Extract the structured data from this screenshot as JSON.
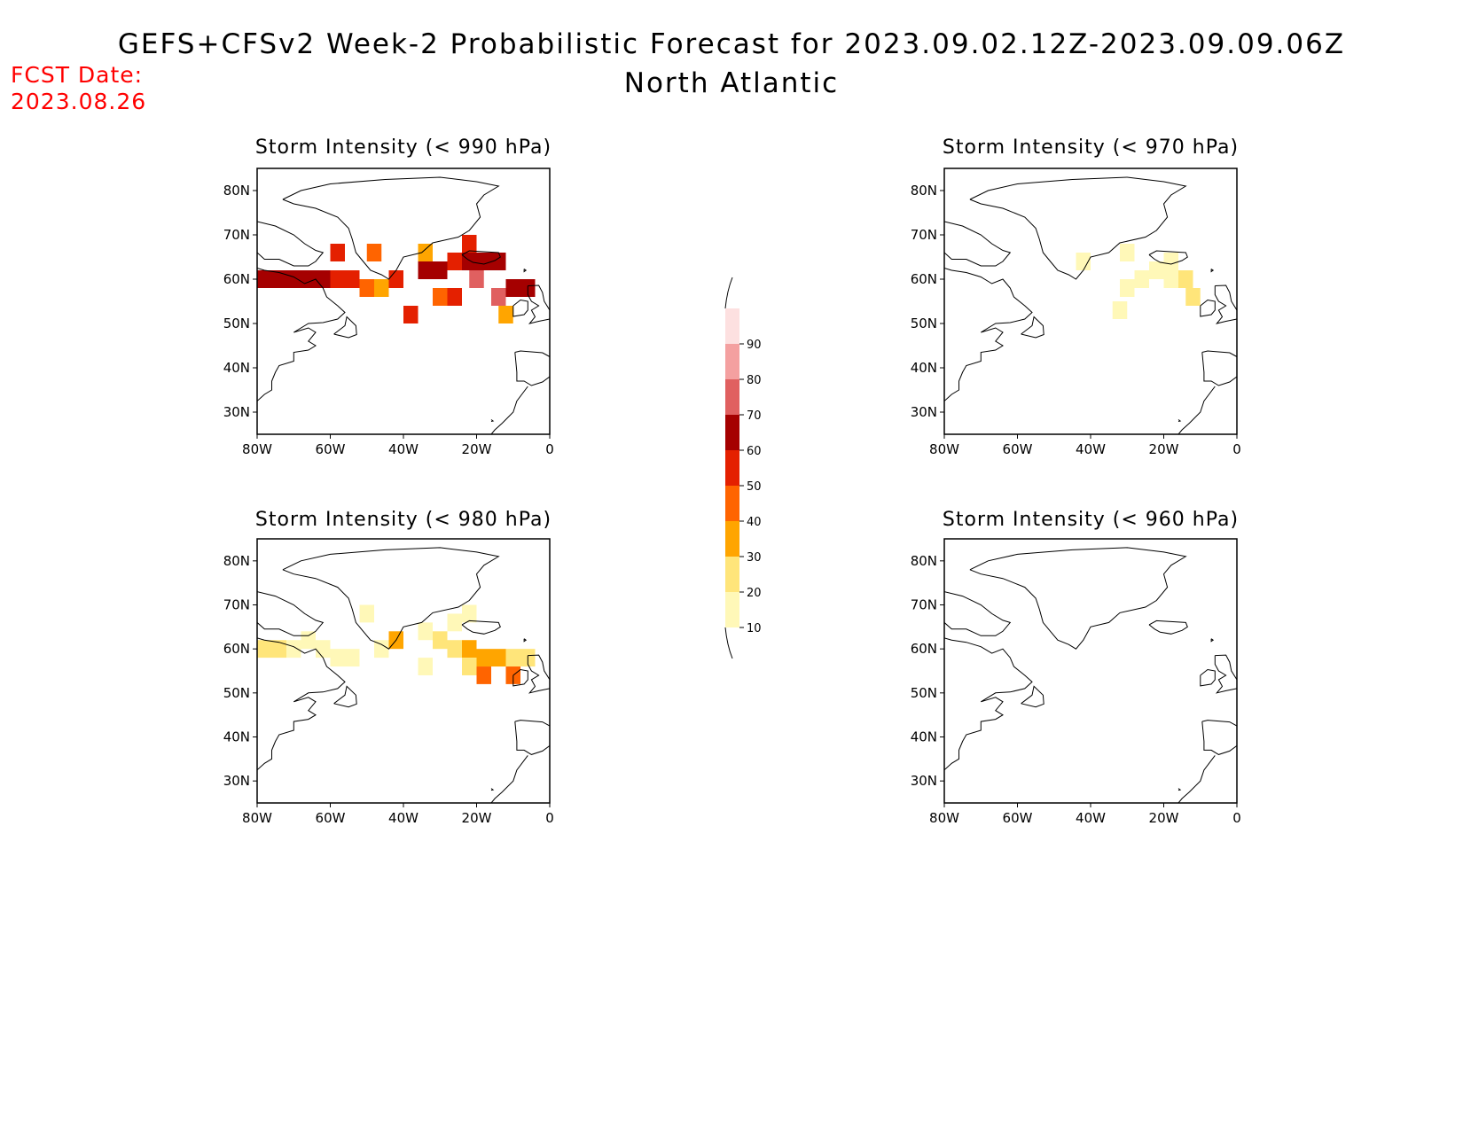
{
  "header": {
    "title": "GEFS+CFSv2 Week-2 Probabilistic Forecast for 2023.09.02.12Z-2023.09.09.06Z",
    "subtitle": "North Atlantic",
    "fcst_label": "FCST Date:",
    "fcst_date": "2023.08.26"
  },
  "axes": {
    "lon_ticks": [
      "80W",
      "60W",
      "40W",
      "20W",
      "0"
    ],
    "lon_values": [
      -80,
      -60,
      -40,
      -20,
      0
    ],
    "lat_ticks": [
      "80N",
      "70N",
      "60N",
      "50N",
      "40N",
      "30N"
    ],
    "lat_values": [
      80,
      70,
      60,
      50,
      40,
      30
    ],
    "lon_range": [
      -80,
      0
    ],
    "lat_range": [
      25,
      85
    ]
  },
  "colorbar": {
    "levels": [
      "10",
      "20",
      "30",
      "40",
      "50",
      "60",
      "70",
      "80",
      "90"
    ],
    "colors": [
      "#fff8b8",
      "#ffe57a",
      "#ffa500",
      "#ff6400",
      "#e42000",
      "#a50000",
      "#e06060",
      "#f4a0a0",
      "#fde0e0"
    ]
  },
  "chart_data": [
    {
      "type": "heatmap",
      "title": "Storm Intensity (< 990 hPa)",
      "value_units": "probability class (%)",
      "cells": [
        {
          "lon": -78,
          "lat": 60,
          "v": 60
        },
        {
          "lon": -74,
          "lat": 60,
          "v": 60
        },
        {
          "lon": -70,
          "lat": 60,
          "v": 60
        },
        {
          "lon": -66,
          "lat": 60,
          "v": 60
        },
        {
          "lon": -62,
          "lat": 60,
          "v": 60
        },
        {
          "lon": -58,
          "lat": 60,
          "v": 50
        },
        {
          "lon": -54,
          "lat": 60,
          "v": 50
        },
        {
          "lon": -50,
          "lat": 58,
          "v": 40
        },
        {
          "lon": -46,
          "lat": 58,
          "v": 30
        },
        {
          "lon": -42,
          "lat": 60,
          "v": 50
        },
        {
          "lon": -34,
          "lat": 62,
          "v": 60
        },
        {
          "lon": -30,
          "lat": 62,
          "v": 60
        },
        {
          "lon": -26,
          "lat": 64,
          "v": 50
        },
        {
          "lon": -22,
          "lat": 64,
          "v": 60
        },
        {
          "lon": -18,
          "lat": 64,
          "v": 60
        },
        {
          "lon": -14,
          "lat": 64,
          "v": 60
        },
        {
          "lon": -10,
          "lat": 58,
          "v": 60
        },
        {
          "lon": -6,
          "lat": 58,
          "v": 60
        },
        {
          "lon": -20,
          "lat": 60,
          "v": 70
        },
        {
          "lon": -14,
          "lat": 56,
          "v": 70
        },
        {
          "lon": -30,
          "lat": 56,
          "v": 40
        },
        {
          "lon": -26,
          "lat": 56,
          "v": 50
        },
        {
          "lon": -58,
          "lat": 66,
          "v": 50
        },
        {
          "lon": -48,
          "lat": 66,
          "v": 40
        },
        {
          "lon": -34,
          "lat": 66,
          "v": 30
        },
        {
          "lon": -22,
          "lat": 68,
          "v": 50
        },
        {
          "lon": -38,
          "lat": 52,
          "v": 50
        },
        {
          "lon": -12,
          "lat": 52,
          "v": 30
        }
      ]
    },
    {
      "type": "heatmap",
      "title": "Storm Intensity (< 970 hPa)",
      "value_units": "probability class (%)",
      "cells": [
        {
          "lon": -42,
          "lat": 64,
          "v": 10
        },
        {
          "lon": -30,
          "lat": 66,
          "v": 10
        },
        {
          "lon": -22,
          "lat": 62,
          "v": 10
        },
        {
          "lon": -18,
          "lat": 60,
          "v": 10
        },
        {
          "lon": -14,
          "lat": 60,
          "v": 20
        },
        {
          "lon": -12,
          "lat": 56,
          "v": 20
        },
        {
          "lon": -26,
          "lat": 60,
          "v": 10
        },
        {
          "lon": -30,
          "lat": 58,
          "v": 10
        },
        {
          "lon": -18,
          "lat": 64,
          "v": 10
        },
        {
          "lon": -32,
          "lat": 53,
          "v": 10
        }
      ]
    },
    {
      "type": "heatmap",
      "title": "Storm Intensity (< 980 hPa)",
      "value_units": "probability class (%)",
      "cells": [
        {
          "lon": -78,
          "lat": 60,
          "v": 20
        },
        {
          "lon": -74,
          "lat": 60,
          "v": 20
        },
        {
          "lon": -70,
          "lat": 60,
          "v": 10
        },
        {
          "lon": -66,
          "lat": 62,
          "v": 10
        },
        {
          "lon": -62,
          "lat": 60,
          "v": 10
        },
        {
          "lon": -58,
          "lat": 58,
          "v": 10
        },
        {
          "lon": -54,
          "lat": 58,
          "v": 10
        },
        {
          "lon": -50,
          "lat": 68,
          "v": 10
        },
        {
          "lon": -46,
          "lat": 60,
          "v": 10
        },
        {
          "lon": -42,
          "lat": 62,
          "v": 30
        },
        {
          "lon": -34,
          "lat": 64,
          "v": 10
        },
        {
          "lon": -30,
          "lat": 62,
          "v": 20
        },
        {
          "lon": -26,
          "lat": 60,
          "v": 20
        },
        {
          "lon": -22,
          "lat": 60,
          "v": 30
        },
        {
          "lon": -18,
          "lat": 58,
          "v": 30
        },
        {
          "lon": -14,
          "lat": 58,
          "v": 30
        },
        {
          "lon": -10,
          "lat": 58,
          "v": 20
        },
        {
          "lon": -6,
          "lat": 58,
          "v": 20
        },
        {
          "lon": -18,
          "lat": 54,
          "v": 40
        },
        {
          "lon": -22,
          "lat": 56,
          "v": 20
        },
        {
          "lon": -26,
          "lat": 66,
          "v": 10
        },
        {
          "lon": -22,
          "lat": 68,
          "v": 10
        },
        {
          "lon": -34,
          "lat": 56,
          "v": 10
        },
        {
          "lon": -10,
          "lat": 54,
          "v": 40
        }
      ]
    },
    {
      "type": "heatmap",
      "title": "Storm Intensity (< 960 hPa)",
      "value_units": "probability class (%)",
      "cells": []
    }
  ]
}
